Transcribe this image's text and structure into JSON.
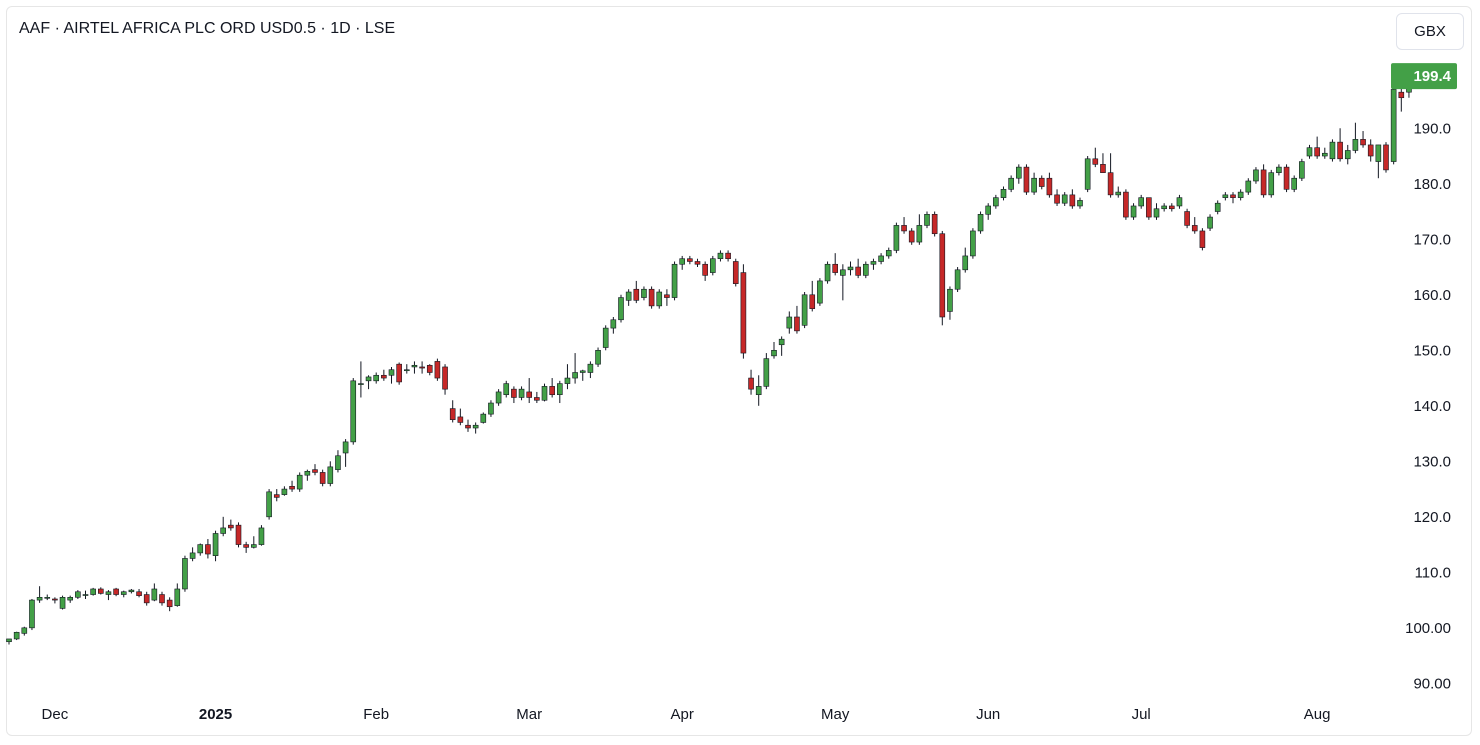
{
  "header": {
    "title": "AAF · AIRTEL AFRICA PLC ORD USD0.5 · 1D · LSE",
    "currency_button": "GBX"
  },
  "last_price": {
    "label": "199.4",
    "color": "#43a047"
  },
  "colors": {
    "up": "#43a047",
    "down": "#c62828",
    "wick": "#131722",
    "text": "#131722"
  },
  "chart_data": {
    "type": "candlestick",
    "title": "AAF · AIRTEL AFRICA PLC ORD USD0.5 · 1D · LSE",
    "xlabel": "",
    "ylabel": "",
    "ylim": [
      87,
      205
    ],
    "grid": false,
    "y_ticks": [
      "90.00",
      "100.00",
      "110.0",
      "120.0",
      "130.0",
      "140.0",
      "150.0",
      "160.0",
      "170.0",
      "180.0",
      "190.0"
    ],
    "x_ticks": [
      {
        "label": "Dec",
        "bold": false,
        "index": 6
      },
      {
        "label": "2025",
        "bold": true,
        "index": 27
      },
      {
        "label": "Feb",
        "bold": false,
        "index": 48
      },
      {
        "label": "Mar",
        "bold": false,
        "index": 68
      },
      {
        "label": "Apr",
        "bold": false,
        "index": 88
      },
      {
        "label": "May",
        "bold": false,
        "index": 108
      },
      {
        "label": "Jun",
        "bold": false,
        "index": 128
      },
      {
        "label": "Jul",
        "bold": false,
        "index": 148
      },
      {
        "label": "Aug",
        "bold": false,
        "index": 171
      }
    ],
    "candles": [
      [
        97.5,
        98.0,
        97.0,
        98.0
      ],
      [
        98.0,
        99.3,
        97.8,
        99.2
      ],
      [
        99.0,
        100.2,
        98.6,
        100.0
      ],
      [
        100.0,
        105.2,
        99.6,
        105.0
      ],
      [
        105.0,
        107.5,
        104.5,
        105.5
      ],
      [
        105.5,
        106.0,
        105.0,
        105.5
      ],
      [
        105.2,
        105.5,
        104.4,
        105.0
      ],
      [
        103.5,
        105.8,
        103.3,
        105.5
      ],
      [
        105.0,
        105.8,
        104.5,
        105.5
      ],
      [
        105.5,
        106.8,
        105.2,
        106.5
      ],
      [
        106.0,
        106.7,
        105.2,
        106.0
      ],
      [
        106.0,
        107.2,
        105.8,
        107.0
      ],
      [
        107.0,
        107.3,
        106.0,
        106.2
      ],
      [
        106.0,
        106.8,
        105.0,
        106.5
      ],
      [
        107.0,
        107.2,
        105.7,
        106.0
      ],
      [
        106.0,
        106.7,
        105.5,
        106.5
      ],
      [
        106.5,
        107.0,
        106.2,
        106.8
      ],
      [
        106.5,
        107.0,
        105.5,
        105.8
      ],
      [
        106.0,
        106.5,
        104.0,
        104.5
      ],
      [
        105.0,
        108.0,
        104.8,
        107.0
      ],
      [
        106.0,
        106.5,
        104.0,
        104.5
      ],
      [
        105.0,
        105.5,
        103.0,
        103.8
      ],
      [
        104.0,
        108.0,
        103.8,
        107.0
      ],
      [
        107.0,
        113.0,
        106.5,
        112.5
      ],
      [
        112.5,
        114.5,
        112.0,
        113.5
      ],
      [
        113.5,
        115.2,
        113.0,
        115.0
      ],
      [
        115.0,
        116.0,
        112.5,
        113.3
      ],
      [
        113.0,
        117.5,
        112.0,
        117.0
      ],
      [
        117.0,
        120.0,
        116.5,
        118.0
      ],
      [
        118.5,
        119.5,
        117.5,
        118.0
      ],
      [
        118.5,
        119.0,
        114.5,
        115.0
      ],
      [
        115.0,
        115.5,
        113.5,
        114.5
      ],
      [
        114.5,
        116.5,
        114.3,
        115.0
      ],
      [
        115.0,
        118.5,
        114.8,
        118.0
      ],
      [
        120.0,
        125.0,
        119.5,
        124.5
      ],
      [
        124.0,
        125.0,
        122.8,
        123.5
      ],
      [
        124.0,
        125.5,
        123.8,
        125.0
      ],
      [
        125.5,
        126.5,
        124.5,
        125.0
      ],
      [
        125.0,
        128.0,
        124.5,
        127.5
      ],
      [
        127.5,
        128.5,
        126.5,
        128.2
      ],
      [
        128.5,
        129.5,
        127.5,
        128.0
      ],
      [
        128.0,
        128.5,
        125.5,
        126.0
      ],
      [
        126.0,
        130.0,
        125.5,
        129.0
      ],
      [
        128.5,
        132.0,
        128.0,
        131.0
      ],
      [
        131.5,
        134.0,
        129.0,
        133.5
      ],
      [
        133.5,
        145.0,
        133.0,
        144.5
      ],
      [
        144.0,
        148.0,
        141.5,
        144.0
      ],
      [
        144.5,
        145.5,
        143.0,
        145.2
      ],
      [
        144.5,
        146.0,
        144.0,
        145.5
      ],
      [
        145.5,
        146.5,
        144.5,
        145.0
      ],
      [
        145.5,
        147.0,
        144.0,
        146.5
      ],
      [
        147.5,
        147.8,
        143.8,
        144.3
      ],
      [
        146.5,
        147.5,
        145.8,
        146.5
      ],
      [
        147.0,
        148.0,
        145.8,
        147.3
      ],
      [
        147.0,
        148.0,
        145.8,
        146.8
      ],
      [
        147.3,
        147.5,
        145.5,
        146.0
      ],
      [
        148.0,
        148.5,
        144.5,
        145.0
      ],
      [
        147.0,
        147.5,
        142.0,
        143.0
      ],
      [
        139.5,
        141.0,
        137.0,
        137.5
      ],
      [
        138.0,
        139.5,
        136.5,
        137.0
      ],
      [
        136.5,
        137.5,
        135.3,
        136.0
      ],
      [
        136.0,
        137.0,
        135.0,
        136.5
      ],
      [
        137.0,
        138.8,
        136.8,
        138.5
      ],
      [
        138.5,
        141.0,
        138.0,
        140.5
      ],
      [
        140.5,
        143.0,
        140.0,
        142.5
      ],
      [
        142.0,
        144.5,
        141.5,
        144.0
      ],
      [
        143.0,
        143.5,
        140.5,
        141.5
      ],
      [
        141.5,
        143.5,
        141.0,
        143.0
      ],
      [
        142.5,
        145.0,
        140.5,
        141.5
      ],
      [
        141.5,
        142.5,
        140.5,
        141.0
      ],
      [
        141.0,
        144.0,
        140.8,
        143.5
      ],
      [
        143.5,
        145.0,
        141.5,
        142.0
      ],
      [
        142.0,
        144.5,
        140.5,
        144.0
      ],
      [
        144.0,
        147.5,
        143.0,
        145.0
      ],
      [
        145.0,
        149.5,
        144.0,
        146.0
      ],
      [
        146.0,
        146.5,
        144.5,
        146.3
      ],
      [
        146.0,
        148.0,
        145.0,
        147.5
      ],
      [
        147.5,
        150.5,
        147.0,
        150.0
      ],
      [
        150.5,
        154.5,
        150.0,
        154.0
      ],
      [
        154.0,
        156.0,
        153.0,
        155.5
      ],
      [
        155.5,
        160.0,
        155.0,
        159.5
      ],
      [
        159.0,
        161.0,
        158.0,
        160.5
      ],
      [
        161.0,
        162.5,
        158.5,
        159.0
      ],
      [
        159.5,
        161.5,
        159.0,
        161.0
      ],
      [
        161.0,
        161.5,
        157.5,
        158.0
      ],
      [
        158.0,
        161.0,
        157.5,
        160.5
      ],
      [
        160.0,
        161.0,
        158.0,
        159.5
      ],
      [
        159.5,
        166.0,
        159.0,
        165.5
      ],
      [
        165.5,
        167.0,
        164.5,
        166.5
      ],
      [
        166.5,
        167.0,
        165.5,
        166.0
      ],
      [
        166.0,
        166.5,
        165.0,
        165.5
      ],
      [
        165.5,
        166.0,
        162.5,
        163.5
      ],
      [
        164.0,
        167.0,
        163.5,
        166.5
      ],
      [
        166.5,
        168.0,
        166.0,
        167.5
      ],
      [
        167.5,
        168.0,
        166.0,
        166.5
      ],
      [
        166.0,
        166.5,
        161.5,
        162.0
      ],
      [
        164.0,
        165.5,
        148.5,
        149.5
      ],
      [
        145.0,
        146.5,
        142.0,
        143.0
      ],
      [
        142.0,
        145.5,
        140.0,
        143.5
      ],
      [
        143.5,
        149.5,
        143.0,
        148.5
      ],
      [
        149.0,
        151.5,
        148.5,
        150.0
      ],
      [
        151.0,
        152.5,
        149.0,
        152.0
      ],
      [
        154.0,
        157.0,
        153.0,
        156.0
      ],
      [
        156.0,
        158.0,
        153.0,
        153.5
      ],
      [
        154.5,
        160.5,
        154.0,
        160.0
      ],
      [
        160.0,
        162.5,
        157.0,
        157.5
      ],
      [
        158.5,
        163.0,
        158.0,
        162.5
      ],
      [
        162.5,
        166.0,
        162.0,
        165.5
      ],
      [
        165.5,
        167.5,
        163.5,
        164.0
      ],
      [
        163.5,
        165.5,
        159.0,
        164.5
      ],
      [
        164.5,
        166.0,
        163.5,
        165.0
      ],
      [
        165.0,
        166.5,
        163.0,
        163.5
      ],
      [
        163.5,
        166.0,
        163.0,
        165.5
      ],
      [
        165.5,
        166.5,
        164.5,
        166.0
      ],
      [
        166.0,
        167.5,
        165.5,
        167.0
      ],
      [
        167.0,
        168.5,
        166.5,
        168.0
      ],
      [
        168.0,
        173.0,
        167.5,
        172.5
      ],
      [
        172.5,
        174.0,
        171.0,
        171.5
      ],
      [
        171.5,
        172.0,
        169.0,
        169.5
      ],
      [
        169.5,
        174.5,
        169.0,
        172.5
      ],
      [
        172.5,
        175.0,
        172.0,
        174.5
      ],
      [
        174.5,
        175.0,
        170.5,
        171.0
      ],
      [
        171.0,
        171.5,
        154.5,
        156.0
      ],
      [
        157.0,
        161.5,
        155.5,
        161.0
      ],
      [
        161.0,
        165.0,
        160.5,
        164.5
      ],
      [
        164.5,
        168.5,
        164.0,
        167.0
      ],
      [
        167.0,
        172.0,
        166.5,
        171.5
      ],
      [
        171.5,
        175.0,
        171.0,
        174.5
      ],
      [
        174.5,
        176.5,
        173.5,
        176.0
      ],
      [
        176.0,
        178.0,
        175.5,
        177.5
      ],
      [
        177.5,
        179.5,
        177.0,
        179.0
      ],
      [
        179.0,
        181.5,
        178.5,
        181.0
      ],
      [
        181.0,
        183.5,
        180.0,
        183.0
      ],
      [
        183.0,
        183.5,
        178.0,
        178.5
      ],
      [
        178.5,
        182.0,
        178.0,
        181.0
      ],
      [
        181.0,
        181.5,
        179.0,
        179.5
      ],
      [
        181.0,
        182.0,
        177.5,
        178.0
      ],
      [
        178.0,
        179.0,
        176.0,
        176.5
      ],
      [
        176.5,
        178.5,
        176.0,
        178.0
      ],
      [
        178.0,
        179.0,
        175.5,
        176.0
      ],
      [
        176.0,
        177.5,
        175.5,
        177.0
      ],
      [
        179.0,
        185.0,
        178.5,
        184.5
      ],
      [
        184.5,
        186.5,
        183.0,
        183.5
      ],
      [
        183.5,
        185.5,
        182.0,
        182.0
      ],
      [
        182.0,
        185.5,
        177.5,
        178.0
      ],
      [
        178.0,
        179.5,
        177.5,
        178.5
      ],
      [
        178.5,
        179.0,
        173.5,
        174.0
      ],
      [
        174.0,
        176.5,
        173.5,
        176.0
      ],
      [
        176.0,
        178.0,
        175.5,
        177.5
      ],
      [
        177.5,
        177.5,
        173.5,
        174.0
      ],
      [
        174.0,
        176.5,
        173.5,
        175.5
      ],
      [
        175.5,
        176.5,
        175.0,
        176.0
      ],
      [
        176.0,
        176.5,
        175.0,
        175.5
      ],
      [
        176.0,
        178.0,
        175.5,
        177.5
      ],
      [
        175.0,
        175.5,
        172.0,
        172.5
      ],
      [
        172.5,
        174.0,
        171.0,
        171.5
      ],
      [
        171.5,
        172.0,
        168.0,
        168.5
      ],
      [
        172.0,
        174.5,
        171.5,
        174.0
      ],
      [
        175.0,
        177.0,
        174.5,
        176.5
      ],
      [
        177.5,
        178.5,
        177.0,
        178.0
      ],
      [
        178.0,
        178.5,
        176.5,
        177.5
      ],
      [
        177.5,
        179.0,
        177.0,
        178.5
      ],
      [
        178.5,
        181.0,
        178.0,
        180.5
      ],
      [
        180.5,
        183.0,
        180.0,
        182.5
      ],
      [
        182.5,
        183.5,
        177.5,
        178.0
      ],
      [
        178.0,
        182.5,
        177.5,
        182.0
      ],
      [
        182.0,
        183.5,
        181.5,
        183.0
      ],
      [
        183.0,
        183.5,
        178.5,
        179.0
      ],
      [
        179.0,
        181.5,
        178.5,
        181.0
      ],
      [
        181.0,
        184.5,
        180.5,
        184.0
      ],
      [
        185.0,
        187.0,
        184.5,
        186.5
      ],
      [
        186.5,
        188.5,
        184.5,
        185.0
      ],
      [
        185.0,
        186.5,
        184.5,
        185.5
      ],
      [
        184.5,
        188.0,
        184.0,
        187.5
      ],
      [
        187.5,
        190.0,
        184.0,
        184.5
      ],
      [
        184.5,
        187.0,
        183.5,
        186.0
      ],
      [
        186.0,
        191.0,
        185.5,
        188.0
      ],
      [
        188.0,
        189.5,
        186.5,
        187.0
      ],
      [
        187.0,
        188.0,
        184.0,
        185.0
      ],
      [
        184.0,
        187.0,
        181.0,
        187.0
      ],
      [
        187.0,
        187.5,
        182.0,
        182.5
      ],
      [
        184.0,
        199.0,
        183.5,
        197.0
      ],
      [
        196.5,
        197.5,
        193.0,
        195.5
      ],
      [
        196.5,
        198.5,
        195.5,
        198.0
      ],
      [
        198.5,
        199.5,
        198.0,
        199.4
      ]
    ]
  }
}
